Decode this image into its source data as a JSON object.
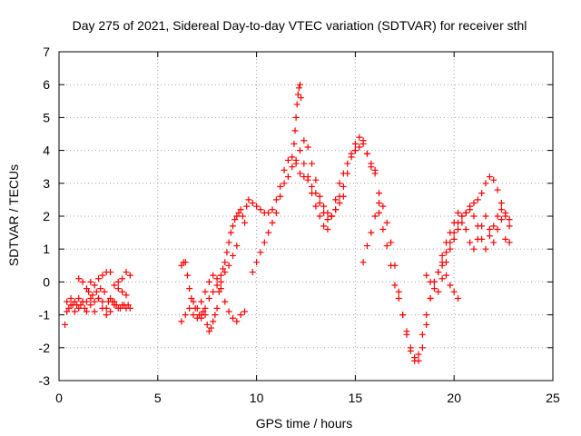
{
  "chart_data": {
    "type": "scatter",
    "title": "Day 275 of 2021, Sidereal Day-to-day VTEC variation (SDTVAR) for receiver sthl",
    "xlabel": "GPS time / hours",
    "ylabel": "SDTVAR / TECUs",
    "xlim": [
      0,
      25
    ],
    "ylim": [
      -3,
      7
    ],
    "xticks": [
      "0",
      "5",
      "10",
      "15",
      "20",
      "25"
    ],
    "yticks": [
      "-3",
      "-2",
      "-1",
      "0",
      "1",
      "2",
      "3",
      "4",
      "5",
      "6",
      "7"
    ],
    "grid": true,
    "marker": "plus",
    "series_color": "#ff0000",
    "series": [
      {
        "name": "sthl",
        "x": [
          0.3,
          0.4,
          0.5,
          0.6,
          0.7,
          0.8,
          0.9,
          1.0,
          1.1,
          1.2,
          1.3,
          1.4,
          1.5,
          1.6,
          1.7,
          1.8,
          1.9,
          2.0,
          2.1,
          2.2,
          2.3,
          2.4,
          2.5,
          2.6,
          2.7,
          2.8,
          2.9,
          3.0,
          3.1,
          3.2,
          3.3,
          3.4,
          3.5,
          3.6,
          0.4,
          0.6,
          0.8,
          1.0,
          1.2,
          1.4,
          1.6,
          1.8,
          2.0,
          2.2,
          2.4,
          2.6,
          2.8,
          3.0,
          3.2,
          3.4,
          3.6,
          1.0,
          1.2,
          1.4,
          1.6,
          1.8,
          2.0,
          2.2,
          2.4,
          2.6,
          2.8,
          3.0,
          3.2,
          3.4,
          6.2,
          6.3,
          6.4,
          6.5,
          6.6,
          6.7,
          6.8,
          6.9,
          7.0,
          7.1,
          7.2,
          7.3,
          7.4,
          7.5,
          7.6,
          7.7,
          7.8,
          7.9,
          8.0,
          8.1,
          8.2,
          8.3,
          8.4,
          8.5,
          8.6,
          8.7,
          8.8,
          8.9,
          9.0,
          9.1,
          9.2,
          9.3,
          9.4,
          9.5,
          6.2,
          6.4,
          6.6,
          6.8,
          7.0,
          7.2,
          7.4,
          7.6,
          7.8,
          8.0,
          8.2,
          8.4,
          8.6,
          8.8,
          9.0,
          7.2,
          7.4,
          7.6,
          7.8,
          8.0,
          8.2,
          8.4,
          8.6,
          8.8,
          9.0,
          9.2,
          9.4,
          9.6,
          9.8,
          10.0,
          10.2,
          10.4,
          10.6,
          10.8,
          11.0,
          11.2,
          11.4,
          11.6,
          11.8,
          12.0,
          12.2,
          12.4,
          12.6,
          12.8,
          13.0,
          13.2,
          13.4,
          13.6,
          13.8,
          14.0,
          14.2,
          14.4,
          14.6,
          14.8,
          15.0,
          15.2,
          15.4,
          15.6,
          15.8,
          16.0,
          9.8,
          10.0,
          10.2,
          10.4,
          10.6,
          10.8,
          11.0,
          11.2,
          11.4,
          11.6,
          11.8,
          12.0,
          11.9,
          11.95,
          12.0,
          12.05,
          12.1,
          12.15,
          12.2,
          12.25,
          12.2,
          12.4,
          12.6,
          12.8,
          13.0,
          13.2,
          13.4,
          13.6,
          13.8,
          14.0,
          14.2,
          14.4,
          14.6,
          14.8,
          15.0,
          12.4,
          12.6,
          12.8,
          13.0,
          13.2,
          13.4,
          13.6,
          13.8,
          14.0,
          14.2,
          14.4,
          15.0,
          15.2,
          15.4,
          15.6,
          15.8,
          16.0,
          16.2,
          15.4,
          15.6,
          15.8,
          16.0,
          16.2,
          16.4,
          16.6,
          16.8,
          17.0,
          17.2,
          17.4,
          17.6,
          17.8,
          18.0,
          18.2,
          18.4,
          18.6,
          18.8,
          19.0,
          19.2,
          19.4,
          19.6,
          19.8,
          20.0,
          20.2,
          20.4,
          20.6,
          20.8,
          21.0,
          21.2,
          21.4,
          21.6,
          21.8,
          22.0,
          22.2,
          22.4,
          22.6,
          22.8,
          16.2,
          16.4,
          16.6,
          16.8,
          17.0,
          17.2,
          17.4,
          17.6,
          17.8,
          18.0,
          18.2,
          18.4,
          18.6,
          18.8,
          19.0,
          19.2,
          19.4,
          19.6,
          19.8,
          20.0,
          20.2,
          18.6,
          18.8,
          19.0,
          19.2,
          19.4,
          19.6,
          19.8,
          20.0,
          20.2,
          20.4,
          20.6,
          20.8,
          21.0,
          21.2,
          21.4,
          21.6,
          21.8,
          22.0,
          22.2,
          22.4,
          22.6,
          22.8,
          19.4,
          19.6,
          19.8,
          20.0,
          20.2,
          20.4,
          20.6,
          20.8,
          21.0,
          21.2,
          21.4,
          21.6,
          21.8,
          22.0,
          22.2,
          22.4,
          22.6,
          22.8
        ],
        "y": [
          -1.3,
          -0.9,
          -0.8,
          -0.7,
          -0.7,
          -0.6,
          -0.7,
          -0.5,
          -0.7,
          -0.6,
          -0.8,
          -0.6,
          -0.3,
          -0.5,
          -0.4,
          -0.6,
          -0.3,
          -0.5,
          -0.2,
          -0.6,
          -0.3,
          -0.8,
          -0.6,
          -0.5,
          -0.6,
          -0.7,
          -0.7,
          -0.8,
          -0.8,
          -0.7,
          -0.7,
          -0.8,
          -0.7,
          -0.8,
          -0.6,
          -0.5,
          -0.9,
          -0.8,
          -0.6,
          -0.9,
          -0.7,
          -0.9,
          -0.5,
          -0.8,
          -1.0,
          -0.9,
          -0.6,
          -0.2,
          0.1,
          0.3,
          0.2,
          0.1,
          0.0,
          -0.2,
          0.0,
          -0.1,
          0.1,
          0.2,
          0.3,
          0.3,
          -0.1,
          0.0,
          -0.3,
          -0.4,
          0.5,
          0.6,
          0.6,
          0.2,
          -0.2,
          -0.5,
          -0.6,
          -0.8,
          -0.8,
          -1.0,
          -1.1,
          -0.9,
          -1.0,
          -1.3,
          -1.5,
          -1.4,
          -1.2,
          -1.0,
          -0.8,
          -0.3,
          0.2,
          0.4,
          0.6,
          0.9,
          1.2,
          1.5,
          1.7,
          1.9,
          2.0,
          2.1,
          2.2,
          2.0,
          1.8,
          2.3,
          -1.2,
          -1.0,
          -0.8,
          -1.0,
          -1.1,
          -1.0,
          -0.8,
          -0.5,
          -0.3,
          -0.1,
          0.0,
          0.3,
          0.5,
          0.8,
          1.1,
          -0.6,
          -0.3,
          0.0,
          0.2,
          0.1,
          -0.2,
          -0.6,
          -0.9,
          -1.1,
          -1.2,
          -1.0,
          -0.9,
          2.5,
          2.4,
          2.3,
          2.2,
          2.1,
          2.1,
          2.2,
          2.5,
          2.9,
          3.4,
          3.7,
          3.8,
          3.6,
          3.3,
          3.2,
          3.1,
          2.9,
          2.7,
          2.4,
          2.1,
          1.9,
          2.0,
          2.2,
          2.6,
          2.9,
          3.3,
          3.9,
          4.2,
          4.4,
          4.3,
          3.9,
          3.5,
          3.4,
          0.3,
          0.6,
          0.9,
          1.2,
          1.5,
          1.8,
          2.1,
          2.6,
          3.0,
          3.2,
          3.5,
          3.7,
          4.2,
          4.6,
          5.0,
          5.4,
          5.7,
          5.9,
          6.0,
          5.6,
          4.0,
          3.6,
          3.2,
          2.7,
          2.3,
          2.0,
          1.7,
          1.6,
          2.0,
          2.5,
          3.0,
          3.3,
          3.6,
          3.8,
          4.0,
          4.3,
          4.1,
          3.6,
          3.1,
          2.6,
          2.3,
          2.1,
          2.0,
          2.2,
          2.4,
          2.6,
          4.0,
          4.1,
          4.2,
          3.9,
          3.6,
          3.3,
          2.7,
          0.6,
          1.1,
          1.5,
          2.0,
          2.4,
          2.3,
          1.8,
          1.2,
          0.5,
          -0.3,
          -1.0,
          -1.6,
          -2.1,
          -2.3,
          -2.4,
          -2.0,
          -1.3,
          -0.5,
          0.0,
          0.3,
          0.6,
          0.9,
          1.2,
          1.5,
          1.8,
          2.0,
          2.1,
          2.2,
          2.4,
          2.5,
          2.7,
          3.0,
          3.2,
          3.1,
          2.8,
          2.4,
          2.0,
          1.7,
          2.1,
          1.6,
          1.1,
          0.5,
          -0.1,
          -0.5,
          -1.0,
          -1.5,
          -2.0,
          -2.4,
          -2.2,
          -1.6,
          -1.0,
          -0.5,
          0.0,
          0.3,
          0.5,
          0.2,
          -0.1,
          -0.3,
          -0.5,
          0.2,
          0.0,
          -0.2,
          -0.3,
          0.1,
          0.6,
          1.0,
          1.3,
          1.6,
          1.8,
          2.1,
          2.3,
          2.0,
          1.7,
          1.3,
          1.0,
          1.4,
          1.7,
          2.0,
          2.2,
          2.1,
          1.9,
          0.8,
          1.2,
          1.5,
          1.8,
          2.1,
          2.0,
          1.6,
          1.2,
          1.0,
          1.3,
          1.7,
          2.0,
          1.6,
          1.2,
          1.6,
          1.9,
          1.3,
          1.2
        ]
      }
    ]
  }
}
